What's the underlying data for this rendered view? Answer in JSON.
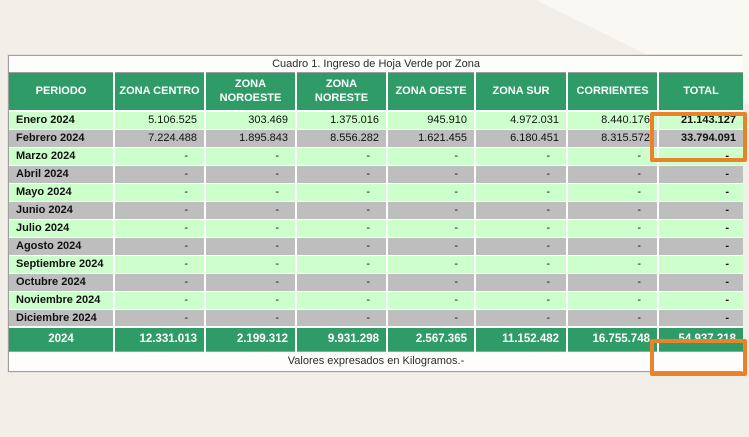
{
  "background": {
    "base_color": "#f2efe9",
    "corner_shade": "#faf8f4"
  },
  "colors": {
    "header_green": "#2f9b67",
    "row_green": "#ccffcc",
    "row_gray": "#bebebe",
    "highlight_orange": "#e8832a"
  },
  "table": {
    "title": "Cuadro 1. Ingreso de Hoja Verde por Zona",
    "columns": [
      "PERIODO",
      "ZONA CENTRO",
      "ZONA NOROESTE",
      "ZONA NORESTE",
      "ZONA OESTE",
      "ZONA SUR",
      "CORRIENTES",
      "TOTAL"
    ],
    "rows": [
      {
        "period": "Enero 2024",
        "values": [
          "5.106.525",
          "303.469",
          "1.375.016",
          "945.910",
          "4.972.031",
          "8.440.176",
          "21.143.127"
        ]
      },
      {
        "period": "Febrero 2024",
        "values": [
          "7.224.488",
          "1.895.843",
          "8.556.282",
          "1.621.455",
          "6.180.451",
          "8.315.572",
          "33.794.091"
        ]
      },
      {
        "period": "Marzo 2024",
        "values": [
          "-",
          "-",
          "-",
          "-",
          "-",
          "-",
          "-"
        ]
      },
      {
        "period": "Abril 2024",
        "values": [
          "-",
          "-",
          "-",
          "-",
          "-",
          "-",
          "-"
        ]
      },
      {
        "period": "Mayo 2024",
        "values": [
          "-",
          "-",
          "-",
          "-",
          "-",
          "-",
          "-"
        ]
      },
      {
        "period": "Junio 2024",
        "values": [
          "-",
          "-",
          "-",
          "-",
          "-",
          "-",
          "-"
        ]
      },
      {
        "period": "Julio 2024",
        "values": [
          "-",
          "-",
          "-",
          "-",
          "-",
          "-",
          "-"
        ]
      },
      {
        "period": "Agosto 2024",
        "values": [
          "-",
          "-",
          "-",
          "-",
          "-",
          "-",
          "-"
        ]
      },
      {
        "period": "Septiembre 2024",
        "values": [
          "-",
          "-",
          "-",
          "-",
          "-",
          "-",
          "-"
        ]
      },
      {
        "period": "Octubre 2024",
        "values": [
          "-",
          "-",
          "-",
          "-",
          "-",
          "-",
          "-"
        ]
      },
      {
        "period": "Noviembre 2024",
        "values": [
          "-",
          "-",
          "-",
          "-",
          "-",
          "-",
          "-"
        ]
      },
      {
        "period": "Diciembre 2024",
        "values": [
          "-",
          "-",
          "-",
          "-",
          "-",
          "-",
          "-"
        ]
      }
    ],
    "total_row": {
      "label": "2024",
      "values": [
        "12.331.013",
        "2.199.312",
        "9.931.298",
        "2.567.365",
        "11.152.482",
        "16.755.748",
        "54.937.218"
      ]
    },
    "footnote": "Valores expresados en Kilogramos.-"
  }
}
